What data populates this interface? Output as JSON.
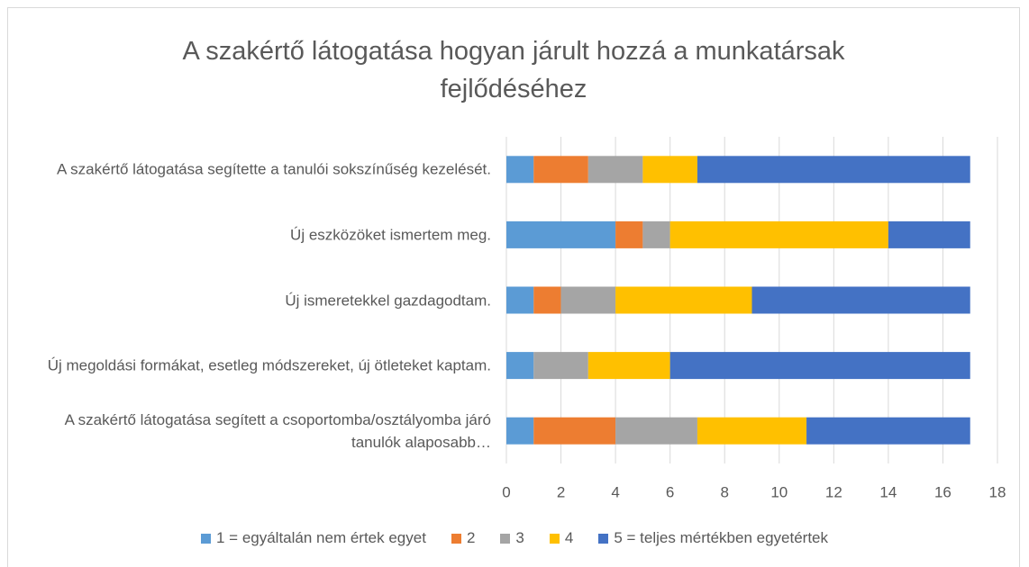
{
  "chart_data": {
    "type": "stacked_bar_horizontal",
    "title": "A szakértő látogatása hogyan járult hozzá a munkatársak fejlődéséhez",
    "categories": [
      "A szakértő látogatása segítette a tanulói sokszínűség kezelését.",
      "Új eszközöket ismertem meg.",
      "Új ismeretekkel gazdagodtam.",
      "Új megoldási formákat, esetleg módszereket, új ötleteket kaptam.",
      "A szakértő látogatása segített a csoportomba/osztályomba járó tanulók alaposabb…"
    ],
    "series": [
      {
        "name": "1 = egyáltalán nem értek egyet",
        "color": "#5b9bd5",
        "values": [
          1,
          4,
          1,
          1,
          1
        ]
      },
      {
        "name": "2",
        "color": "#ed7d31",
        "values": [
          2,
          1,
          1,
          0,
          3
        ]
      },
      {
        "name": "3",
        "color": "#a5a5a5",
        "values": [
          2,
          1,
          2,
          2,
          3
        ]
      },
      {
        "name": "4",
        "color": "#ffc000",
        "values": [
          2,
          8,
          5,
          3,
          4
        ]
      },
      {
        "name": "5 = teljes mértékben egyetértek",
        "color": "#4472c4",
        "values": [
          10,
          3,
          8,
          11,
          6
        ]
      }
    ],
    "xlim": [
      0,
      18
    ],
    "xticks": [
      0,
      2,
      4,
      6,
      8,
      10,
      12,
      14,
      16,
      18
    ],
    "grid": true,
    "legend": "bottom"
  }
}
